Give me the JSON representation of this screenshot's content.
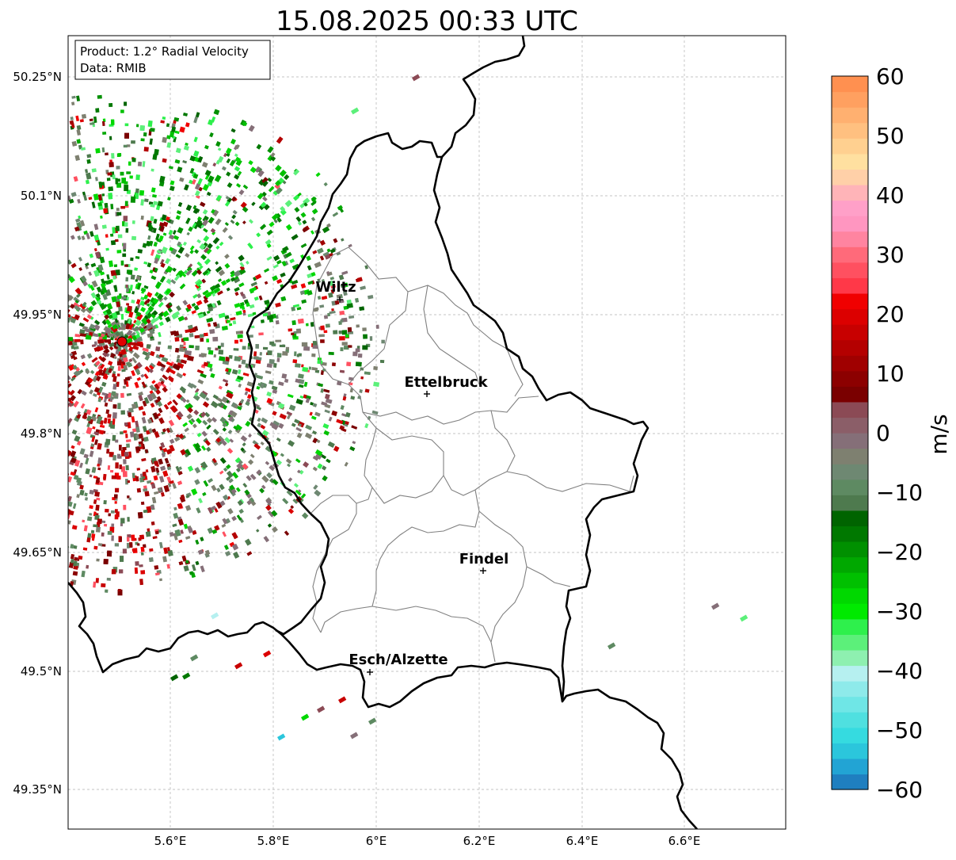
{
  "title": "15.08.2025 00:33 UTC",
  "info_box": {
    "product_line": "Product: 1.2° Radial Velocity",
    "data_line": "Data: RMIB"
  },
  "lat_labels": [
    "50.25°N",
    "50.1°N",
    "49.95°N",
    "49.8°N",
    "49.65°N",
    "49.5°N",
    "49.35°N"
  ],
  "lon_labels": [
    "5.6°E",
    "5.8°E",
    "6°E",
    "6.2°E",
    "6.4°E",
    "6.6°E"
  ],
  "cities": [
    {
      "name": "Wiltz"
    },
    {
      "name": "Ettelbruck"
    },
    {
      "name": "Findel"
    },
    {
      "name": "Esch/Alzette"
    }
  ],
  "colorbar": {
    "unit": "m/s",
    "tick_labels": [
      "60",
      "50",
      "40",
      "30",
      "20",
      "10",
      "0",
      "−10",
      "−20",
      "−30",
      "−40",
      "−50",
      "−60"
    ],
    "range": [
      -60,
      60
    ]
  },
  "colors": {
    "border": "#000000",
    "canton_border": "#808080",
    "grid": "#b0b0b0",
    "radar_site": "#e00000",
    "velocity_scale": [
      "#1f7fc0",
      "#22a4d4",
      "#2bc6dc",
      "#35dbe0",
      "#4fe0e0",
      "#6fe6e6",
      "#8eeaea",
      "#b6f0f0",
      "#8ef0b0",
      "#5cf07a",
      "#2ef04c",
      "#00ea00",
      "#00d800",
      "#00c000",
      "#00a800",
      "#009000",
      "#007800",
      "#006400",
      "#4e7a4e",
      "#5e8a62",
      "#6e8872",
      "#7e8070",
      "#856f78",
      "#8b5e68",
      "#8b4a55",
      "#7a0000",
      "#8c0000",
      "#a00000",
      "#b40000",
      "#c80000",
      "#dc0000",
      "#f00000",
      "#ff3848",
      "#ff5060",
      "#ff6a7a",
      "#ff84a0",
      "#ff96c0",
      "#ffa0c8",
      "#ffb4b8",
      "#ffd0a8",
      "#ffe0a0",
      "#ffd090",
      "#ffc080",
      "#ffb070",
      "#ffa060",
      "#ff9050"
    ]
  }
}
